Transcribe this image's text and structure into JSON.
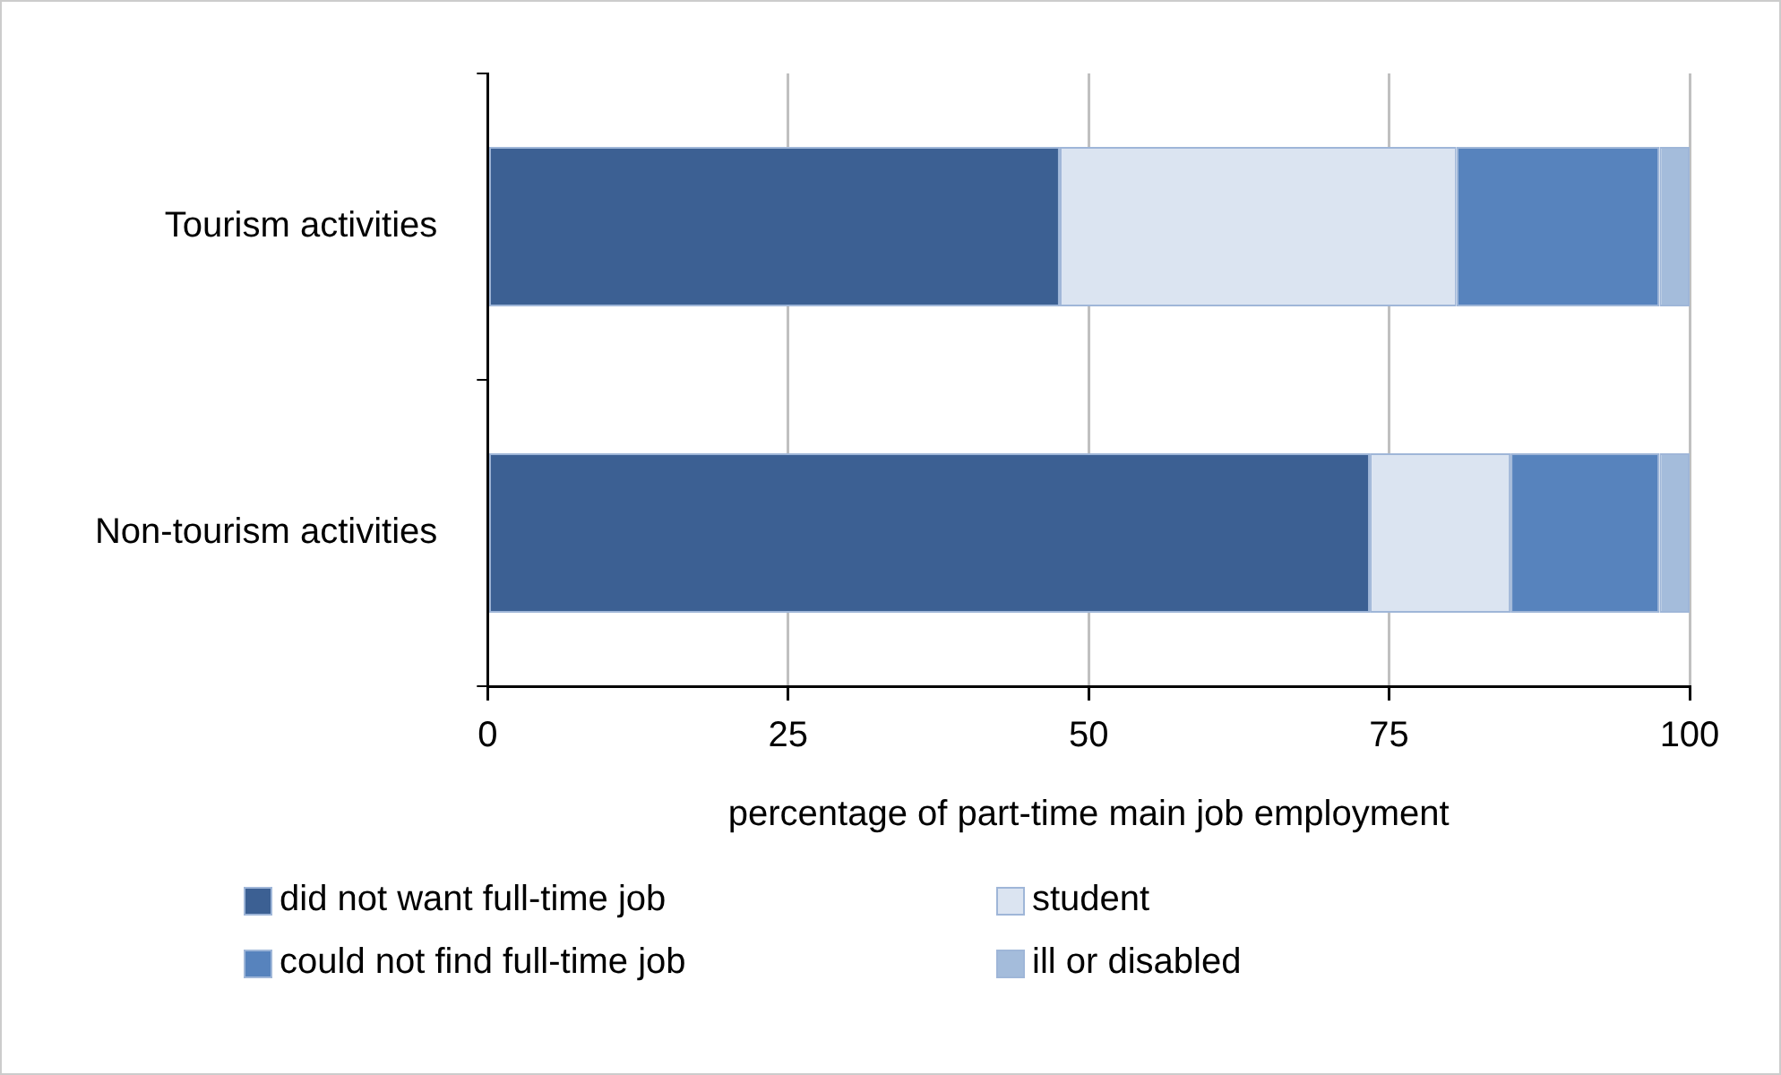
{
  "chart_data": {
    "type": "bar",
    "orientation": "horizontal",
    "stacked": true,
    "categories": [
      "Tourism activities",
      "Non-tourism activities"
    ],
    "series": [
      {
        "name": "did not want full-time job",
        "color": "#3c6093",
        "values": [
          47.6,
          73.4
        ]
      },
      {
        "name": "student",
        "color": "#dbe4f1",
        "values": [
          33.0,
          11.7
        ]
      },
      {
        "name": "could not find full-time job",
        "color": "#5783bd",
        "values": [
          16.9,
          12.4
        ]
      },
      {
        "name": "ill or disabled",
        "color": "#a4bcdb",
        "values": [
          2.5,
          2.5
        ]
      }
    ],
    "xlabel": "percentage of part-time main job employment",
    "xlim": [
      0,
      100
    ],
    "xticks": [
      0,
      25,
      50,
      75,
      100
    ],
    "grid": "x",
    "legend": "bottom"
  }
}
